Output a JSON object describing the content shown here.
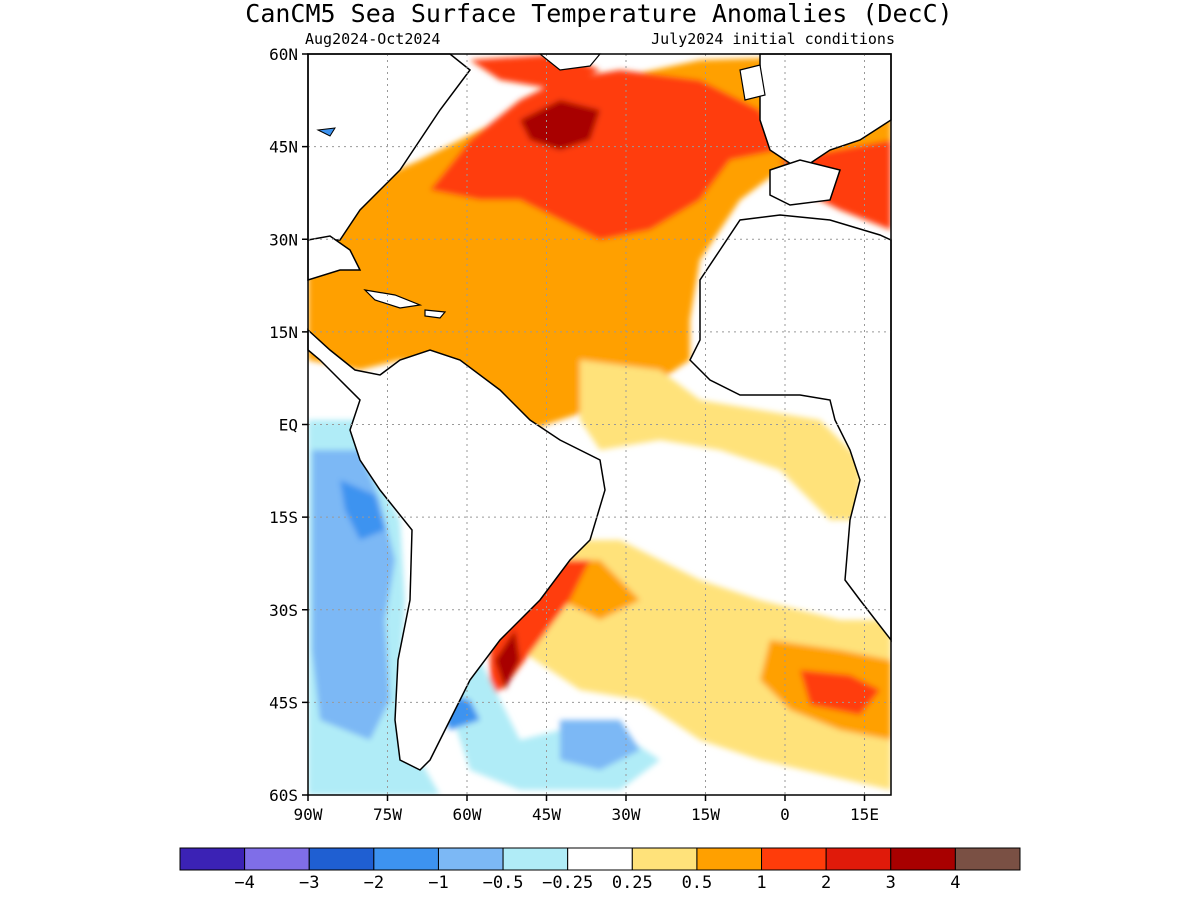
{
  "title": "CanCM5 Sea Surface Temperature Anomalies (DecC)",
  "subtitle_left": "Aug2024-Oct2024",
  "subtitle_right": "July2024 initial conditions",
  "map": {
    "lon_range": [
      -90,
      20
    ],
    "lat_range": [
      -60,
      60
    ],
    "lat_ticks": [
      {
        "value": 60,
        "label": "60N"
      },
      {
        "value": 45,
        "label": "45N"
      },
      {
        "value": 30,
        "label": "30N"
      },
      {
        "value": 15,
        "label": "15N"
      },
      {
        "value": 0,
        "label": "EQ"
      },
      {
        "value": -15,
        "label": "15S"
      },
      {
        "value": -30,
        "label": "30S"
      },
      {
        "value": -45,
        "label": "45S"
      },
      {
        "value": -60,
        "label": "60S"
      }
    ],
    "lon_ticks": [
      {
        "value": -90,
        "label": "90W"
      },
      {
        "value": -75,
        "label": "75W"
      },
      {
        "value": -60,
        "label": "60W"
      },
      {
        "value": -45,
        "label": "45W"
      },
      {
        "value": -30,
        "label": "30W"
      },
      {
        "value": -15,
        "label": "15W"
      },
      {
        "value": 0,
        "label": "0"
      },
      {
        "value": 15,
        "label": "15E"
      }
    ],
    "grid": "dotted"
  },
  "colorbar": {
    "colors": [
      "#3b22b5",
      "#7f6ee8",
      "#1f5fd2",
      "#3d93f0",
      "#7cb8f5",
      "#b0ecf7",
      "#ffffff",
      "#ffe27a",
      "#ffa000",
      "#ff3c0a",
      "#e01a0a",
      "#a80000",
      "#7a5044"
    ],
    "labels": [
      "−4",
      "−3",
      "−2",
      "−1",
      "−0.5",
      "−0.25",
      "0.25",
      "0.5",
      "1",
      "2",
      "3",
      "4"
    ]
  },
  "land_color": "#ffffff",
  "coast_color": "#000000"
}
